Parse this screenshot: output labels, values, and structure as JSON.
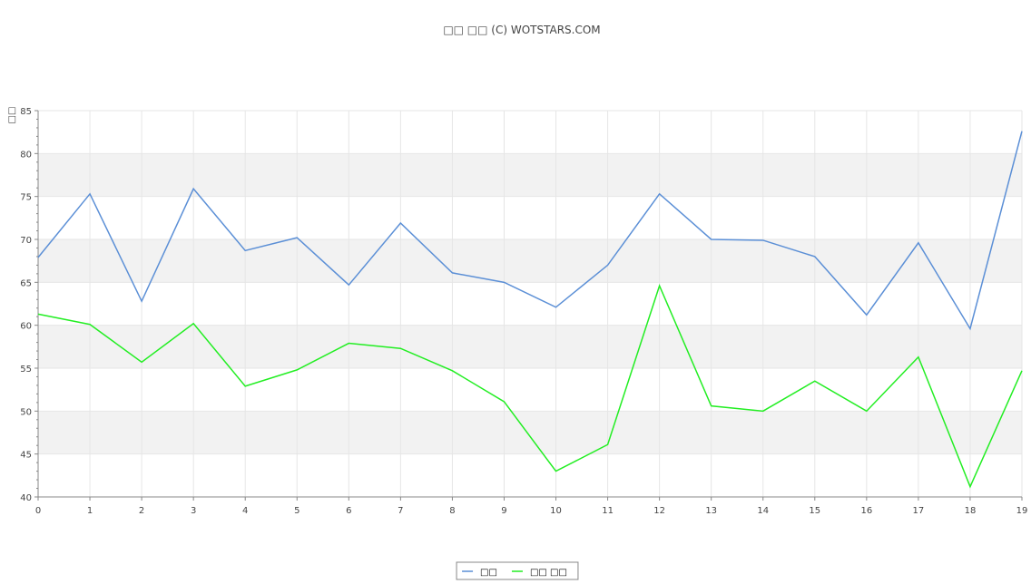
{
  "chart_data": {
    "type": "line",
    "title": "□□ □□ (C) WOTSTARS.COM",
    "y_label": "□□",
    "x": [
      0,
      1,
      2,
      3,
      4,
      5,
      6,
      7,
      8,
      9,
      10,
      11,
      12,
      13,
      14,
      15,
      16,
      17,
      18,
      19
    ],
    "xlim": [
      0,
      19
    ],
    "xticks": [
      0,
      1,
      2,
      3,
      4,
      5,
      6,
      7,
      8,
      9,
      10,
      11,
      12,
      13,
      14,
      15,
      16,
      17,
      18,
      19
    ],
    "ylim": [
      40,
      85
    ],
    "yticks": [
      40,
      45,
      50,
      55,
      60,
      65,
      70,
      75,
      80,
      85
    ],
    "grid": true,
    "legend": "bottom",
    "series": [
      {
        "name": "□□",
        "color": "#5b8fd6",
        "values": [
          67.9,
          75.3,
          62.8,
          75.9,
          68.7,
          70.2,
          64.7,
          71.9,
          66.1,
          65.0,
          62.1,
          67.0,
          75.3,
          70.0,
          69.9,
          68.0,
          61.2,
          69.6,
          59.6,
          82.6
        ]
      },
      {
        "name": "□□ □□",
        "color": "#22ee22",
        "values": [
          61.3,
          60.1,
          55.7,
          60.2,
          52.9,
          54.8,
          57.9,
          57.3,
          54.7,
          51.1,
          43.0,
          46.1,
          64.6,
          50.6,
          50.0,
          53.5,
          50.0,
          56.3,
          41.2,
          54.7
        ]
      }
    ]
  }
}
